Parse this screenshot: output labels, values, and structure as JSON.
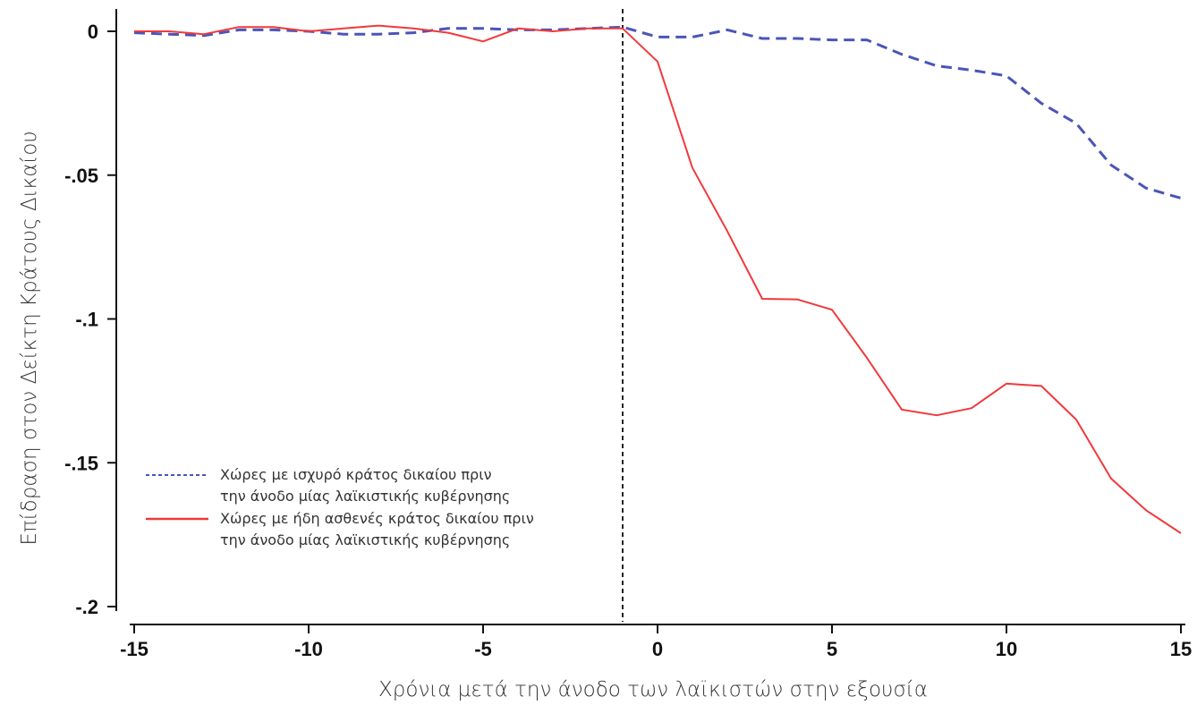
{
  "chart_data": {
    "type": "line",
    "xlabel": "Χρόνια μετά την άνοδο των λαϊκιστών στην εξουσία",
    "ylabel": "Επίδραση στον Δείκτη Κράτους Δικαίου",
    "xlim": [
      -15,
      15
    ],
    "ylim": [
      -0.2,
      0
    ],
    "x_ticks": [
      -15,
      -10,
      -5,
      0,
      5,
      10,
      15
    ],
    "x_tick_labels": [
      "-15",
      "-10",
      "-5",
      "0",
      "5",
      "10",
      "15"
    ],
    "y_ticks": [
      0,
      -0.05,
      -0.1,
      -0.15,
      -0.2
    ],
    "y_tick_labels": [
      "0",
      "-.05",
      "-.1",
      "-.15",
      "-.2"
    ],
    "vline_x": -1,
    "grid": false,
    "legend_position": "bottom-left",
    "x": [
      -15,
      -14,
      -13,
      -12,
      -11,
      -10,
      -9,
      -8,
      -7,
      -6,
      -5,
      -4,
      -3,
      -2,
      -1,
      0,
      1,
      2,
      3,
      4,
      5,
      6,
      7,
      8,
      9,
      10,
      11,
      12,
      13,
      14,
      15
    ],
    "series": [
      {
        "name": "Χώρες με ισχυρό κράτος δικαίου πριν την άνοδο μίας λαϊκιστικής κυβέρνησης",
        "legend_lines": [
          "Χώρες με ισχυρό κράτος δικαίου πριν",
          "την άνοδο μίας λαϊκιστικής κυβέρνησης"
        ],
        "color": "#4a55b8",
        "style": "dashed",
        "values": [
          -0.0005,
          -0.001,
          -0.0015,
          0.0005,
          0.0005,
          0,
          -0.001,
          -0.001,
          -0.0005,
          0.001,
          0.001,
          0.0005,
          0.0005,
          0.001,
          0.0015,
          -0.002,
          -0.002,
          0.0005,
          -0.0025,
          -0.0025,
          -0.003,
          -0.003,
          -0.008,
          -0.012,
          -0.0135,
          -0.0155,
          -0.025,
          -0.032,
          -0.0465,
          -0.0545,
          -0.058
        ]
      },
      {
        "name": "Χώρες με ήδη ασθενές κράτος δικαίου πριν την άνοδο μίας λαϊκιστικής κυβέρνησης",
        "legend_lines": [
          "Χώρες με ήδη ασθενές κράτος δικαίου πριν",
          "την άνοδο μίας λαϊκιστικής κυβέρνησης"
        ],
        "color": "#f0393c",
        "style": "solid",
        "values": [
          0,
          0,
          -0.001,
          0.0015,
          0.0015,
          0,
          0.001,
          0.002,
          0.001,
          -0.0005,
          -0.0035,
          0.001,
          0,
          0.001,
          0.001,
          -0.0105,
          -0.0475,
          -0.0695,
          -0.093,
          -0.0932,
          -0.0968,
          -0.1135,
          -0.1315,
          -0.1335,
          -0.131,
          -0.1225,
          -0.1233,
          -0.135,
          -0.1555,
          -0.1665,
          -0.1745
        ]
      }
    ]
  }
}
